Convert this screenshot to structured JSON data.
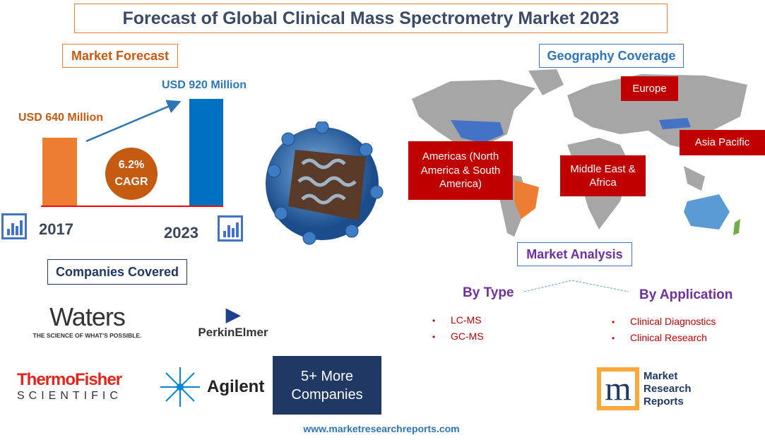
{
  "title": "Forecast of Global Clinical Mass Spectrometry Market 2023",
  "market_forecast": {
    "heading": "Market Forecast",
    "bars": [
      {
        "year": "2017",
        "label": "USD 640 Million",
        "value": 640,
        "color": "#ed7d31"
      },
      {
        "year": "2023",
        "label": "USD 920 Million",
        "value": 920,
        "color": "#0070c0"
      }
    ],
    "cagr_value": "6.2%",
    "cagr_label": "CAGR"
  },
  "companies": {
    "heading": "Companies Covered",
    "waters": "Waters",
    "waters_tagline": "THE SCIENCE OF WHAT'S POSSIBLE.",
    "perkinelmer": "PerkinElmer",
    "thermo_top": "ThermoFisher",
    "thermo_bottom": "SCIENTIFIC",
    "agilent": "Agilent",
    "more_line1": "5+ More",
    "more_line2": "Companies"
  },
  "geography": {
    "heading": "Geography Coverage",
    "regions": [
      "Europe",
      "Asia Pacific",
      "Americas (North America & South America)",
      "Middle East & Africa"
    ]
  },
  "analysis": {
    "heading": "Market Analysis",
    "by_type": {
      "heading": "By Type",
      "items": [
        "LC-MS",
        "GC-MS"
      ]
    },
    "by_application": {
      "heading": "By Application",
      "items": [
        "Clinical Diagnostics",
        "Clinical Research"
      ]
    }
  },
  "logo": {
    "line1": "Market",
    "line2": "Research",
    "line3": "Reports",
    "mark": "m"
  },
  "website": "www.marketresearchreports.com"
}
